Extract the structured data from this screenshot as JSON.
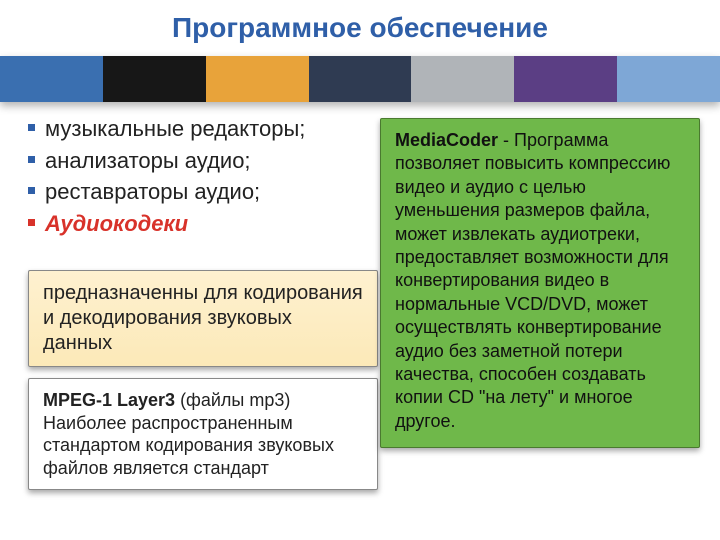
{
  "title": {
    "text": "Программное обеспечение",
    "color": "#2f5fa8"
  },
  "banner": {
    "segments": [
      {
        "color": "#3a6fb0",
        "flex": 1
      },
      {
        "color": "#171717",
        "flex": 1
      },
      {
        "color": "#e8a33a",
        "flex": 1
      },
      {
        "color": "#2f3b52",
        "flex": 1
      },
      {
        "color": "#b0b4b8",
        "flex": 1
      },
      {
        "color": "#5b3e84",
        "flex": 1
      },
      {
        "color": "#7ea7d6",
        "flex": 1
      }
    ]
  },
  "list": {
    "bullet_color": "#2f5fa8",
    "highlight_color": "#d8322a",
    "items": [
      {
        "text": "музыкальные редакторы;",
        "highlight": false
      },
      {
        "text": "анализаторы аудио;",
        "highlight": false
      },
      {
        "text": "реставраторы аудио;",
        "highlight": false
      },
      {
        "text": "Аудиокодеки",
        "highlight": true
      }
    ]
  },
  "box1": {
    "bg_from": "#fef1d0",
    "bg_to": "#fce9b8",
    "text": "предназначенны для кодирования и декодирования звуковых данных"
  },
  "box2": {
    "bold": "MPEG-1 Layer3",
    "paren": " (файлы mp3)",
    "rest": "Наиболее распространенным стандартом кодирования звуковых файлов является стандарт"
  },
  "box3": {
    "bg": "#6fb84a",
    "bold": "MediaCoder",
    "rest": " - Программа позволяет повысить компрессию видео и аудио с целью уменьшения размеров файла, может извлекать аудиотреки, предоставляет возможности для конвертирования видео в нормальные VCD/DVD, может осуществлять конвертирование аудио без заметной потери качества, способен создавать копии CD \"на лету\" и многое другое."
  }
}
